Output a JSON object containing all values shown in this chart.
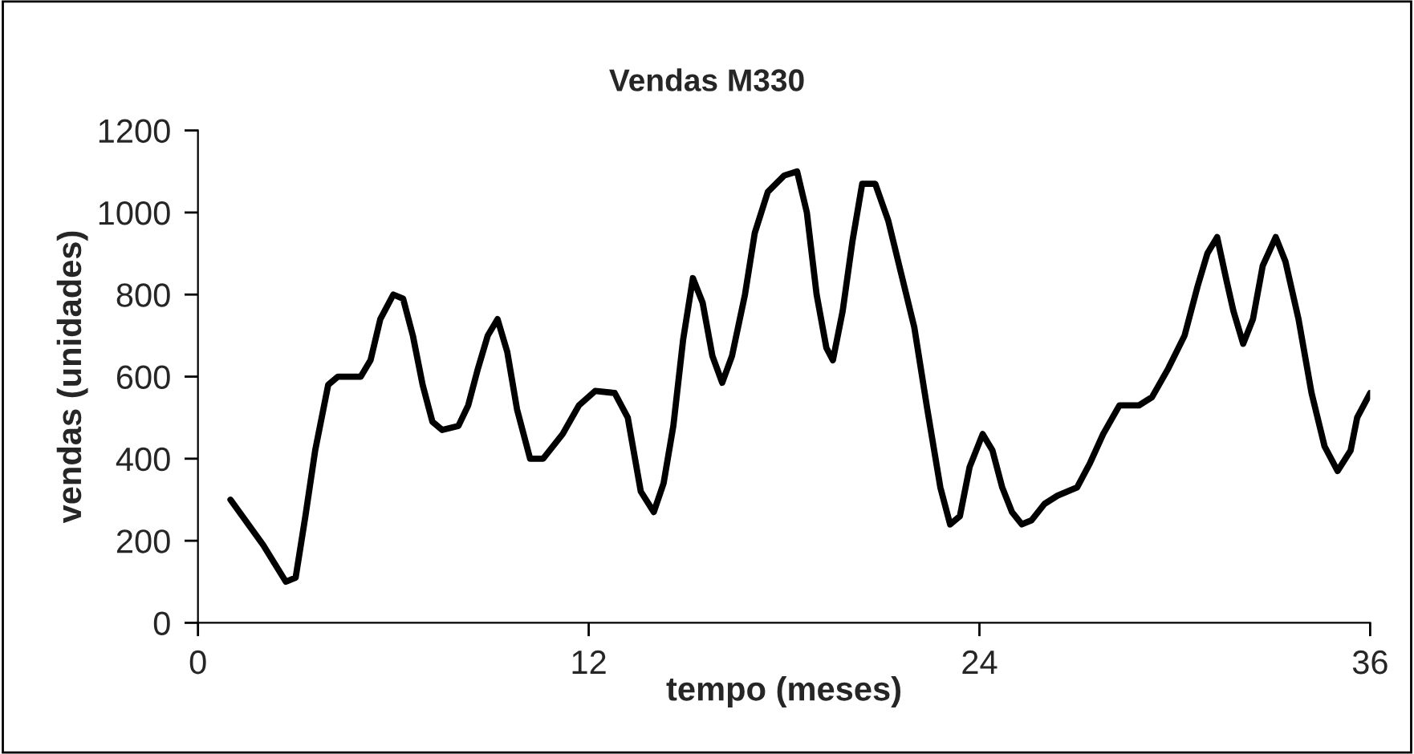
{
  "chart_data": {
    "type": "line",
    "title": "Vendas M330",
    "xlabel": "tempo (meses)",
    "ylabel": "vendas (unidades)",
    "xlim": [
      0,
      36
    ],
    "xticks": [
      0,
      12,
      24,
      36
    ],
    "ylim": [
      0,
      1200
    ],
    "yticks": [
      0,
      200,
      400,
      600,
      800,
      1000,
      1200
    ],
    "grid": false,
    "marker": "none",
    "line_style": "solid",
    "series": [
      {
        "color": "#000000",
        "x": [
          1,
          2,
          2.7,
          3,
          3.3,
          3.6,
          4,
          4.3,
          5,
          5.3,
          5.6,
          6,
          6.3,
          6.6,
          6.9,
          7.2,
          7.5,
          8,
          8.3,
          8.6,
          8.9,
          9.2,
          9.5,
          9.8,
          10.2,
          10.6,
          11.2,
          11.7,
          12.2,
          12.8,
          13.2,
          13.6,
          14,
          14.3,
          14.6,
          14.9,
          15.2,
          15.5,
          15.8,
          16.1,
          16.4,
          16.8,
          17.1,
          17.5,
          18,
          18.4,
          18.7,
          19,
          19.3,
          19.5,
          19.8,
          20.1,
          20.4,
          20.8,
          21.2,
          21.6,
          22,
          22.4,
          22.8,
          23.1,
          23.4,
          23.7,
          24.1,
          24.4,
          24.7,
          25,
          25.3,
          25.6,
          26,
          26.4,
          27,
          27.4,
          27.8,
          28.3,
          28.9,
          29.3,
          29.8,
          30.3,
          30.7,
          31,
          31.3,
          31.6,
          31.8,
          32.1,
          32.4,
          32.7,
          33.1,
          33.4,
          33.8,
          34.2,
          34.6,
          35,
          35.4,
          35.6,
          36
        ],
        "values": [
          300,
          190,
          100,
          110,
          260,
          420,
          580,
          600,
          600,
          640,
          740,
          800,
          790,
          700,
          580,
          490,
          470,
          480,
          530,
          620,
          700,
          740,
          660,
          520,
          400,
          400,
          460,
          530,
          565,
          560,
          500,
          320,
          270,
          340,
          480,
          690,
          840,
          780,
          650,
          585,
          650,
          800,
          950,
          1050,
          1090,
          1100,
          1000,
          800,
          670,
          640,
          760,
          930,
          1070,
          1070,
          980,
          850,
          720,
          520,
          330,
          240,
          260,
          380,
          460,
          420,
          330,
          270,
          240,
          250,
          290,
          310,
          330,
          390,
          460,
          530,
          530,
          550,
          620,
          700,
          820,
          900,
          940,
          830,
          760,
          680,
          740,
          870,
          940,
          880,
          740,
          560,
          430,
          370,
          420,
          500,
          560
        ]
      }
    ]
  }
}
